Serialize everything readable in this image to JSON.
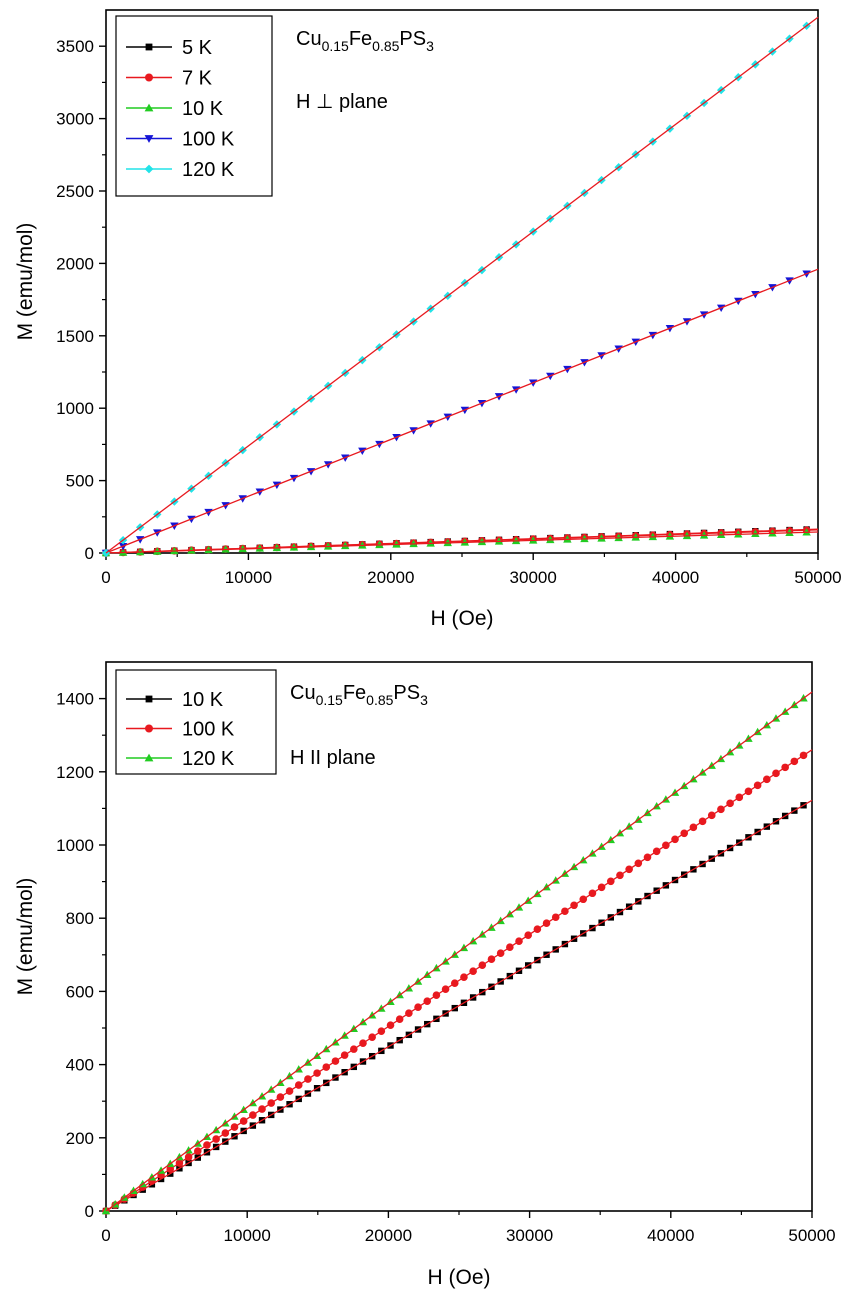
{
  "chart_data": [
    {
      "type": "scatter",
      "xlabel": "H (Oe)",
      "ylabel": "M (emu/mol)",
      "xlim": [
        0,
        50000
      ],
      "ylim": [
        0,
        3750
      ],
      "xticks": [
        0,
        10000,
        20000,
        30000,
        40000,
        50000
      ],
      "yticks": [
        0,
        500,
        1000,
        1500,
        2000,
        2500,
        3000,
        3500
      ],
      "annotations": {
        "formula": {
          "base": [
            "Cu",
            "Fe",
            "PS"
          ],
          "sub": [
            "0.15",
            "0.85",
            "3"
          ]
        },
        "orientation": "H ⊥ plane"
      },
      "legend": {
        "placement": "top-left"
      },
      "fit_line_color": "#e8191f",
      "series": [
        {
          "name": "5 K",
          "color": "#000000",
          "marker": "square",
          "x": [
            0,
            50000
          ],
          "y": [
            0,
            165
          ]
        },
        {
          "name": "7 K",
          "color": "#e8191f",
          "marker": "circle",
          "x": [
            0,
            50000
          ],
          "y": [
            0,
            160
          ]
        },
        {
          "name": "10 K",
          "color": "#21cc21",
          "marker": "triangle-up",
          "x": [
            0,
            50000
          ],
          "y": [
            0,
            145
          ]
        },
        {
          "name": "100 K",
          "color": "#1515d6",
          "marker": "triangle-down",
          "x": [
            0,
            50000
          ],
          "y": [
            0,
            1960
          ]
        },
        {
          "name": "120 K",
          "color": "#22e3e8",
          "marker": "diamond",
          "x": [
            0,
            50000
          ],
          "y": [
            0,
            3700
          ]
        }
      ]
    },
    {
      "type": "scatter",
      "xlabel": "H (Oe)",
      "ylabel": "M (emu/mol)",
      "xlim": [
        0,
        50000
      ],
      "ylim": [
        0,
        1500
      ],
      "xticks": [
        0,
        10000,
        20000,
        30000,
        40000,
        50000
      ],
      "yticks": [
        0,
        200,
        400,
        600,
        800,
        1000,
        1200,
        1400
      ],
      "annotations": {
        "formula": {
          "base": [
            "Cu",
            "Fe",
            "PS"
          ],
          "sub": [
            "0.15",
            "0.85",
            "3"
          ]
        },
        "orientation": "H II plane"
      },
      "legend": {
        "placement": "top-left"
      },
      "fit_line_color": "#e8191f",
      "series": [
        {
          "name": "10 K",
          "color": "#000000",
          "marker": "square",
          "x": [
            0,
            50000
          ],
          "y": [
            0,
            1122
          ]
        },
        {
          "name": "100 K",
          "color": "#e8191f",
          "marker": "circle",
          "x": [
            0,
            50000
          ],
          "y": [
            0,
            1260
          ]
        },
        {
          "name": "120 K",
          "color": "#21cc21",
          "marker": "triangle-up",
          "x": [
            0,
            50000
          ],
          "y": [
            0,
            1418
          ]
        }
      ]
    }
  ]
}
